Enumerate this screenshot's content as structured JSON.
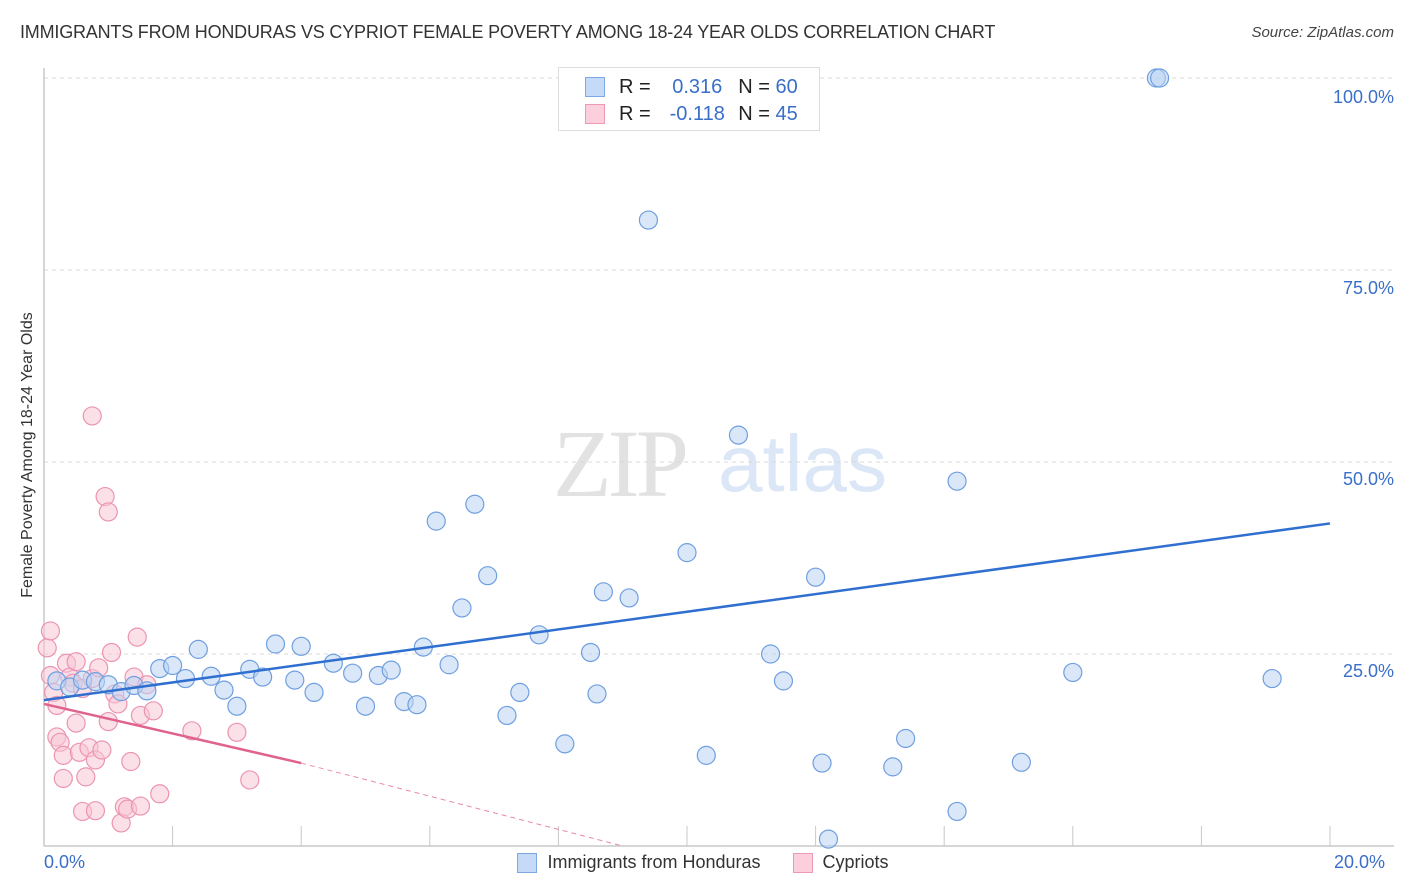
{
  "header": {
    "title": "IMMIGRANTS FROM HONDURAS VS CYPRIOT FEMALE POVERTY AMONG 18-24 YEAR OLDS CORRELATION CHART",
    "source": "Source: ZipAtlas.com"
  },
  "legend": {
    "rows": [
      {
        "r_label": "R =",
        "r_value": "0.316",
        "n_label": "N =",
        "n_value": "60",
        "color": "#aecbf2"
      },
      {
        "r_label": "R =",
        "r_value": "-0.118",
        "n_label": "N =",
        "n_value": "45",
        "color": "#f7c0d0"
      }
    ]
  },
  "bottom_legend": [
    {
      "label": "Immigrants from Honduras",
      "color": "#aecbf2"
    },
    {
      "label": "Cypriots",
      "color": "#f7c0d0"
    }
  ],
  "axes": {
    "y_label": "Female Poverty Among 18-24 Year Olds",
    "x_min_label": "0.0%",
    "x_max_label": "20.0%",
    "y_ticks": [
      "100.0%",
      "75.0%",
      "50.0%",
      "25.0%"
    ]
  },
  "watermark": {
    "zip": "ZIP",
    "atlas": "atlas"
  },
  "chart_data": {
    "type": "scatter",
    "title": "IMMIGRANTS FROM HONDURAS VS CYPRIOT FEMALE POVERTY AMONG 18-24 YEAR OLDS CORRELATION CHART",
    "xlabel": "",
    "ylabel": "Female Poverty Among 18-24 Year Olds",
    "xlim": [
      0,
      20
    ],
    "ylim": [
      0,
      100
    ],
    "x_ticks": [
      "0.0%",
      "20.0%"
    ],
    "y_ticks": [
      "25.0%",
      "50.0%",
      "75.0%",
      "100.0%"
    ],
    "grid": true,
    "legend_position": "top-center and bottom",
    "series": [
      {
        "name": "Immigrants from Honduras",
        "color": "#6f9fe0",
        "R": 0.316,
        "N": 60,
        "trend": {
          "x": [
            0,
            20
          ],
          "y": [
            19.0,
            42.0
          ]
        },
        "points": [
          [
            0.2,
            21.5
          ],
          [
            0.4,
            20.7
          ],
          [
            0.6,
            21.6
          ],
          [
            0.8,
            21.4
          ],
          [
            1.0,
            21.0
          ],
          [
            1.2,
            20.1
          ],
          [
            1.4,
            20.9
          ],
          [
            1.6,
            20.2
          ],
          [
            1.8,
            23.1
          ],
          [
            2.0,
            23.5
          ],
          [
            2.2,
            21.8
          ],
          [
            2.4,
            25.6
          ],
          [
            2.6,
            22.1
          ],
          [
            2.8,
            20.3
          ],
          [
            3.0,
            18.2
          ],
          [
            3.2,
            23.0
          ],
          [
            3.4,
            22.0
          ],
          [
            3.6,
            26.3
          ],
          [
            3.9,
            21.6
          ],
          [
            4.0,
            26.0
          ],
          [
            4.2,
            20.0
          ],
          [
            4.5,
            23.8
          ],
          [
            4.8,
            22.5
          ],
          [
            5.0,
            18.2
          ],
          [
            5.2,
            22.2
          ],
          [
            5.4,
            22.9
          ],
          [
            5.6,
            18.8
          ],
          [
            5.8,
            18.4
          ],
          [
            5.9,
            25.9
          ],
          [
            6.1,
            42.3
          ],
          [
            6.3,
            23.6
          ],
          [
            6.5,
            31.0
          ],
          [
            6.7,
            44.5
          ],
          [
            6.9,
            35.2
          ],
          [
            7.2,
            17.0
          ],
          [
            7.4,
            20.0
          ],
          [
            7.7,
            27.5
          ],
          [
            8.1,
            13.3
          ],
          [
            8.5,
            25.2
          ],
          [
            8.6,
            19.8
          ],
          [
            8.7,
            33.1
          ],
          [
            9.1,
            32.3
          ],
          [
            9.4,
            81.5
          ],
          [
            10.0,
            38.2
          ],
          [
            10.3,
            11.8
          ],
          [
            10.8,
            53.5
          ],
          [
            11.3,
            25.0
          ],
          [
            11.5,
            21.5
          ],
          [
            12.0,
            35.0
          ],
          [
            12.1,
            10.8
          ],
          [
            12.2,
            0.9
          ],
          [
            13.2,
            10.3
          ],
          [
            13.4,
            14.0
          ],
          [
            14.2,
            47.5
          ],
          [
            14.2,
            4.5
          ],
          [
            15.2,
            10.9
          ],
          [
            16.0,
            22.6
          ],
          [
            17.3,
            100.0
          ],
          [
            17.35,
            100.0
          ],
          [
            19.1,
            21.8
          ]
        ]
      },
      {
        "name": "Cypriots",
        "color": "#ef8fae",
        "R": -0.118,
        "N": 45,
        "trend": {
          "x": [
            0,
            4.0
          ],
          "y": [
            18.5,
            10.8
          ]
        },
        "trend_extrapolated": {
          "x": [
            4.0,
            9.0
          ],
          "y": [
            10.8,
            0.0
          ]
        },
        "points": [
          [
            0.05,
            25.8
          ],
          [
            0.1,
            28.0
          ],
          [
            0.1,
            22.2
          ],
          [
            0.15,
            20.0
          ],
          [
            0.2,
            18.3
          ],
          [
            0.2,
            14.2
          ],
          [
            0.25,
            13.5
          ],
          [
            0.3,
            11.8
          ],
          [
            0.3,
            8.8
          ],
          [
            0.35,
            23.8
          ],
          [
            0.4,
            22.0
          ],
          [
            0.45,
            21.2
          ],
          [
            0.5,
            24.0
          ],
          [
            0.5,
            16.0
          ],
          [
            0.55,
            12.2
          ],
          [
            0.6,
            20.5
          ],
          [
            0.6,
            4.5
          ],
          [
            0.65,
            9.0
          ],
          [
            0.7,
            12.8
          ],
          [
            0.75,
            21.8
          ],
          [
            0.8,
            4.6
          ],
          [
            0.8,
            11.2
          ],
          [
            0.85,
            23.2
          ],
          [
            0.9,
            12.5
          ],
          [
            0.95,
            45.5
          ],
          [
            1.0,
            43.5
          ],
          [
            1.0,
            16.2
          ],
          [
            1.05,
            25.2
          ],
          [
            1.1,
            19.8
          ],
          [
            1.15,
            18.5
          ],
          [
            1.2,
            3.0
          ],
          [
            1.25,
            5.1
          ],
          [
            1.3,
            4.8
          ],
          [
            1.35,
            11.0
          ],
          [
            1.4,
            22.0
          ],
          [
            1.45,
            27.2
          ],
          [
            1.5,
            5.2
          ],
          [
            0.75,
            56.0
          ],
          [
            1.5,
            17.0
          ],
          [
            1.6,
            21.0
          ],
          [
            1.7,
            17.6
          ],
          [
            1.8,
            6.8
          ],
          [
            2.3,
            15.0
          ],
          [
            3.0,
            14.8
          ],
          [
            3.2,
            8.6
          ]
        ]
      }
    ]
  }
}
